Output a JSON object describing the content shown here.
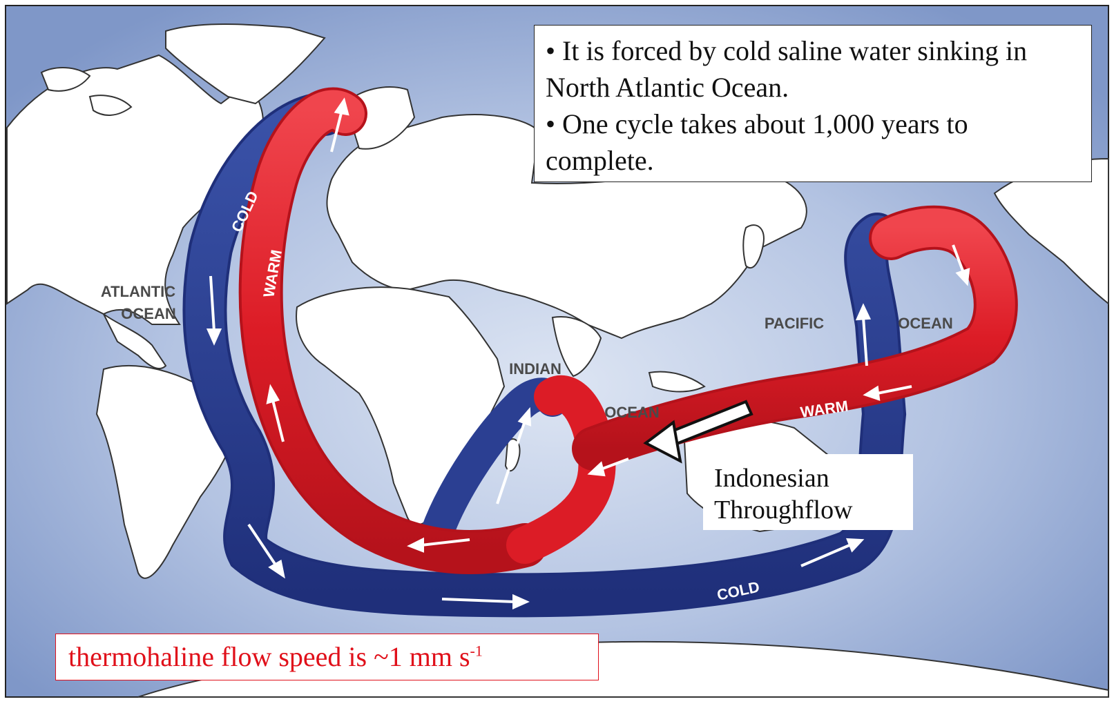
{
  "info_box": {
    "line1": "• It is forced by cold saline water sinking in North Atlantic Ocean.",
    "line2": "• One cycle takes about 1,000 years to complete."
  },
  "map_labels": {
    "atlantic": "ATLANTIC",
    "atlantic_ocean": "OCEAN",
    "indian": "INDIAN",
    "indian_ocean": "OCEAN",
    "pacific": "PACIFIC",
    "pacific_ocean": "OCEAN"
  },
  "flow_labels": {
    "cold_atlantic": "COLD",
    "warm_atlantic": "WARM",
    "warm_pacific": "WARM",
    "cold_southern": "COLD"
  },
  "throughflow_label": {
    "line1": "Indonesian",
    "line2": "Throughflow"
  },
  "speed_note": {
    "text": "thermohaline flow speed is ~1 mm s",
    "exponent": "-1"
  },
  "colors": {
    "ocean": "#8ea3cf",
    "ocean_center": "#d6e0f0",
    "land": "#ffffff",
    "warm": "#e3202a",
    "cold": "#2b3f92",
    "speed_text": "#e0101a"
  }
}
